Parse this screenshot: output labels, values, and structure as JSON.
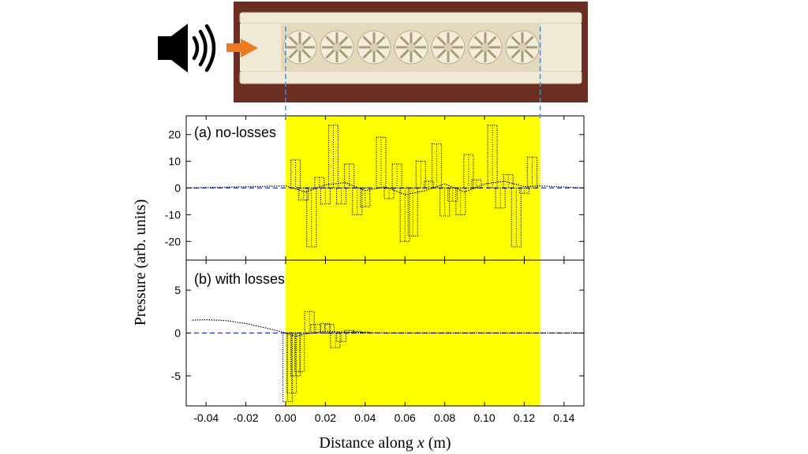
{
  "figure": {
    "ylabel": "Pressure (arb. units)",
    "xlabel_prefix": "Distance along ",
    "xlabel_var": "x",
    "xlabel_suffix": " (m)"
  },
  "colors": {
    "highlight": "#ffff00",
    "reference_line": "#1f2fa8",
    "arrow": "#f07a20",
    "slab_bg": "#6b2e22",
    "slab": "#efe9d5"
  },
  "icons": {
    "speaker": "speaker-icon",
    "arrow": "arrow-right-icon"
  },
  "chart_data": [
    {
      "type": "scatter",
      "title": "(a) no-losses",
      "xlim": [
        -0.05,
        0.15
      ],
      "ylim": [
        -27,
        27
      ],
      "xticks": [
        -0.04,
        -0.02,
        0.0,
        0.02,
        0.04,
        0.06,
        0.08,
        0.1,
        0.12,
        0.14
      ],
      "yticks": [
        20,
        10,
        0,
        -10,
        -20
      ],
      "highlight_x": [
        0.0,
        0.128
      ],
      "series": [
        {
          "x": [
            0.005,
            0.009,
            0.013,
            0.017,
            0.02,
            0.024,
            0.028,
            0.032,
            0.036,
            0.04,
            0.048,
            0.052,
            0.056,
            0.06,
            0.064,
            0.068,
            0.072,
            0.076,
            0.08,
            0.084,
            0.088,
            0.092,
            0.096,
            0.104,
            0.108,
            0.112,
            0.116,
            0.12,
            0.124
          ],
          "y": [
            10.5,
            -4.5,
            -22,
            4,
            -6,
            23.5,
            -6,
            9,
            -10,
            -7,
            19,
            -4,
            9,
            -20,
            -18,
            10,
            2.5,
            16.5,
            -10.5,
            -5,
            -10,
            12.5,
            3,
            23.5,
            -7.5,
            5,
            -22,
            -2,
            11.5
          ]
        },
        {
          "x": [
            -0.05,
            0.0,
            0.01,
            0.02,
            0.03,
            0.04,
            0.05,
            0.06,
            0.07,
            0.08,
            0.09,
            0.1,
            0.11,
            0.12,
            0.128,
            0.15
          ],
          "y": [
            0,
            0.8,
            -1.5,
            1.2,
            2,
            -1,
            0.5,
            -2.5,
            -1,
            1.5,
            -1.5,
            1.5,
            2.5,
            0.5,
            0.8,
            0
          ]
        }
      ]
    },
    {
      "type": "scatter",
      "title": "(b) with losses",
      "xlim": [
        -0.05,
        0.15
      ],
      "ylim": [
        -8.5,
        8.5
      ],
      "xticks": [
        -0.04,
        -0.02,
        0.0,
        0.02,
        0.04,
        0.06,
        0.08,
        0.1,
        0.12,
        0.14
      ],
      "yticks": [
        5,
        0,
        -5
      ],
      "highlight_x": [
        0.0,
        0.128
      ],
      "series": [
        {
          "x": [
            0.001,
            0.003,
            0.005,
            0.007,
            0.012,
            0.015,
            0.02,
            0.022,
            0.025,
            0.028,
            0.032,
            0.036,
            0.04
          ],
          "y": [
            -8,
            -7,
            -5,
            -4.5,
            2.5,
            1,
            1.1,
            1,
            -1.7,
            -1,
            0.3,
            0.2,
            0.1
          ]
        },
        {
          "x": [
            -0.047,
            -0.04,
            -0.03,
            -0.02,
            -0.01,
            0.0,
            0.005,
            0.01,
            0.02,
            0.03,
            0.04,
            0.05,
            0.08,
            0.128,
            0.15
          ],
          "y": [
            1.5,
            1.55,
            1.45,
            1.1,
            0.6,
            0,
            -0.4,
            -0.1,
            0.2,
            0.1,
            0.05,
            0,
            0,
            0,
            0
          ]
        }
      ]
    }
  ]
}
